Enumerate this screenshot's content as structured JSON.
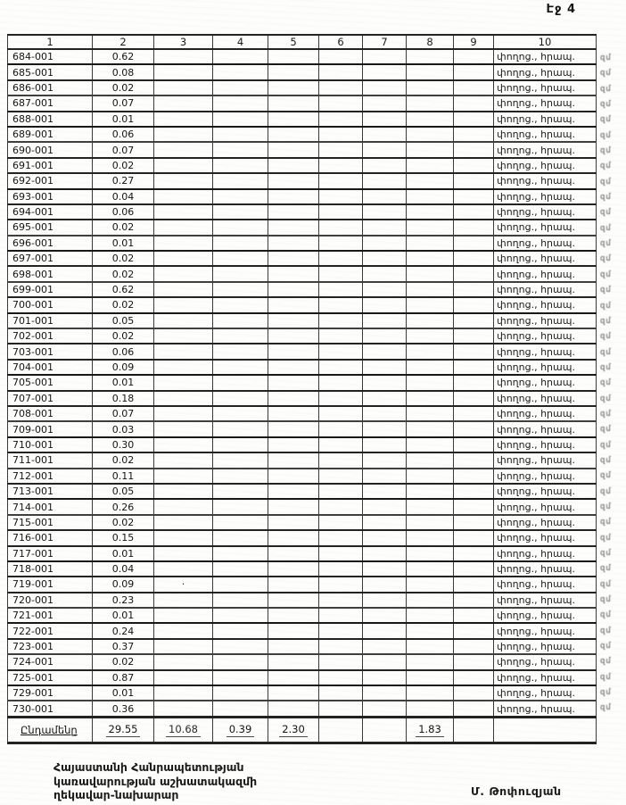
{
  "page": {
    "header": "Էջ 4"
  },
  "table": {
    "column_headers": [
      "1",
      "2",
      "3",
      "4",
      "5",
      "6",
      "7",
      "8",
      "9",
      "10"
    ],
    "col10_text": "փողոց., հրապ.",
    "rows": [
      {
        "code": "684-001",
        "value": "0.62"
      },
      {
        "code": "685-001",
        "value": "0.08"
      },
      {
        "code": "686-001",
        "value": "0.02"
      },
      {
        "code": "687-001",
        "value": "0.07"
      },
      {
        "code": "688-001",
        "value": "0.01"
      },
      {
        "code": "689-001",
        "value": "0.06"
      },
      {
        "code": "690-001",
        "value": "0.07"
      },
      {
        "code": "691-001",
        "value": "0.02"
      },
      {
        "code": "692-001",
        "value": "0.27"
      },
      {
        "code": "693-001",
        "value": "0.04"
      },
      {
        "code": "694-001",
        "value": "0.06"
      },
      {
        "code": "695-001",
        "value": "0.02"
      },
      {
        "code": "696-001",
        "value": "0.01"
      },
      {
        "code": "697-001",
        "value": "0.02"
      },
      {
        "code": "698-001",
        "value": "0.02"
      },
      {
        "code": "699-001",
        "value": "0.62"
      },
      {
        "code": "700-001",
        "value": "0.02"
      },
      {
        "code": "701-001",
        "value": "0.05"
      },
      {
        "code": "702-001",
        "value": "0.02"
      },
      {
        "code": "703-001",
        "value": "0.06"
      },
      {
        "code": "704-001",
        "value": "0.09"
      },
      {
        "code": "705-001",
        "value": "0.01"
      },
      {
        "code": "707-001",
        "value": "0.18"
      },
      {
        "code": "708-001",
        "value": "0.07"
      },
      {
        "code": "709-001",
        "value": "0.03"
      },
      {
        "code": "710-001",
        "value": "0.30"
      },
      {
        "code": "711-001",
        "value": "0.02"
      },
      {
        "code": "712-001",
        "value": "0.11"
      },
      {
        "code": "713-001",
        "value": "0.05"
      },
      {
        "code": "714-001",
        "value": "0.26"
      },
      {
        "code": "715-001",
        "value": "0.02"
      },
      {
        "code": "716-001",
        "value": "0.15"
      },
      {
        "code": "717-001",
        "value": "0.01"
      },
      {
        "code": "718-001",
        "value": "0.04"
      },
      {
        "code": "719-001",
        "value": "0.09"
      },
      {
        "code": "720-001",
        "value": "0.23"
      },
      {
        "code": "721-001",
        "value": "0.01"
      },
      {
        "code": "722-001",
        "value": "0.24"
      },
      {
        "code": "723-001",
        "value": "0.37"
      },
      {
        "code": "724-001",
        "value": "0.02"
      },
      {
        "code": "725-001",
        "value": "0.87"
      },
      {
        "code": "729-001",
        "value": "0.01"
      },
      {
        "code": "730-001",
        "value": "0.36"
      }
    ],
    "total": {
      "label": "Ընդամենը",
      "col2": "29.55",
      "col3": "10.68",
      "col4": "0.39",
      "col5": "2.30",
      "col8": "1.83"
    }
  },
  "artifacts": {
    "dot_row_code": "719-001",
    "dot_glyph": "·",
    "edge_fragment": "զմ"
  },
  "footer": {
    "lines": [
      "Հայաստանի Հանրապետության",
      "կառավարության աշխատակազմի",
      "ղեկավար-նախարար"
    ],
    "signature": "Մ. Թոփուզյան"
  }
}
